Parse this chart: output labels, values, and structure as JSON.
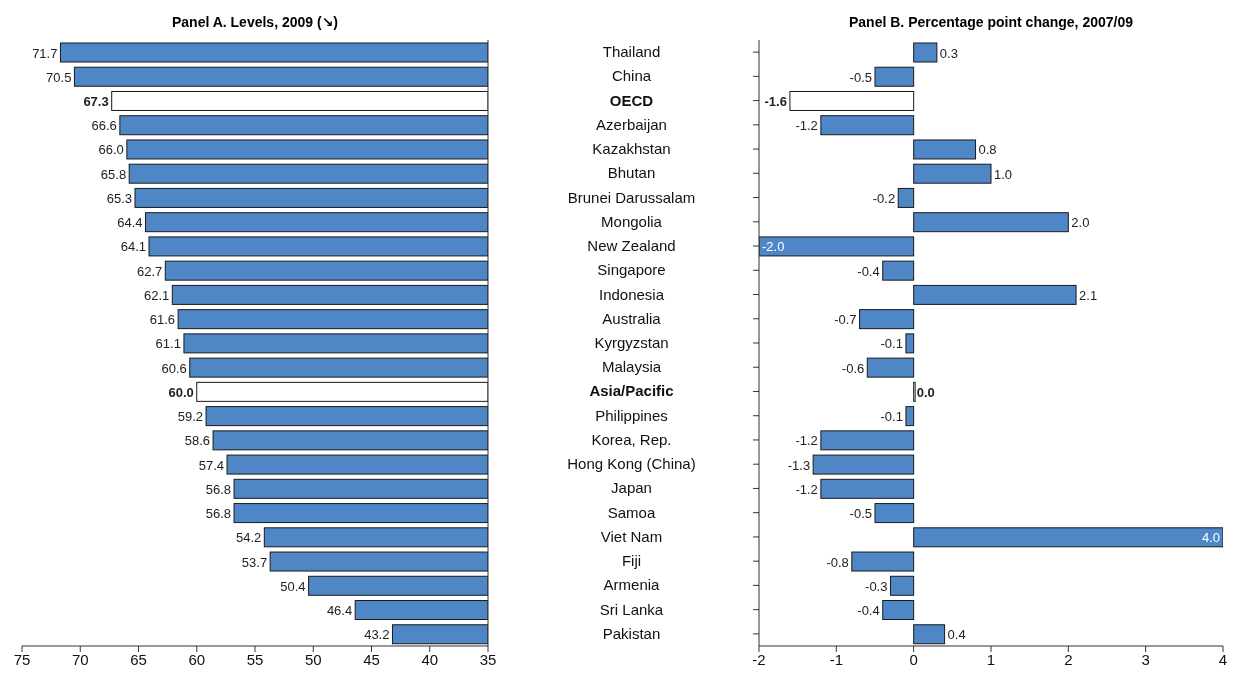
{
  "chart_data": [
    {
      "type": "bar",
      "orientation": "horizontal",
      "title": "Panel A. Levels, 2009 (↘)",
      "categories": [
        "Thailand",
        "China",
        "OECD",
        "Azerbaijan",
        "Kazakhstan",
        "Bhutan",
        "Brunei Darussalam",
        "Mongolia",
        "New Zealand",
        "Singapore",
        "Indonesia",
        "Australia",
        "Kyrgyzstan",
        "Malaysia",
        "Asia/Pacific",
        "Philippines",
        "Korea, Rep.",
        "Hong Kong (China)",
        "Japan",
        "Samoa",
        "Viet Nam",
        "Fiji",
        "Armenia",
        "Sri Lanka",
        "Pakistan"
      ],
      "values": [
        71.7,
        70.5,
        67.3,
        66.6,
        66.0,
        65.8,
        65.3,
        64.4,
        64.1,
        62.7,
        62.1,
        61.6,
        61.1,
        60.6,
        60.0,
        59.2,
        58.6,
        57.4,
        56.8,
        56.8,
        54.2,
        53.7,
        50.4,
        46.4,
        43.2
      ],
      "value_labels": [
        "71.7",
        "70.5",
        "67.3",
        "66.6",
        "66.0",
        "65.8",
        "65.3",
        "64.4",
        "64.1",
        "62.7",
        "62.1",
        "61.6",
        "61.1",
        "60.6",
        "60.0",
        "59.2",
        "58.6",
        "57.4",
        "56.8",
        "56.8",
        "54.2",
        "53.7",
        "50.4",
        "46.4",
        "43.2"
      ],
      "colors": [
        "#4f86c6",
        "#4f86c6",
        "#ffffff",
        "#4f86c6",
        "#4f86c6",
        "#4f86c6",
        "#4f86c6",
        "#4f86c6",
        "#4f86c6",
        "#4f86c6",
        "#4f86c6",
        "#4f86c6",
        "#4f86c6",
        "#4f86c6",
        "#ffffff",
        "#4f86c6",
        "#4f86c6",
        "#4f86c6",
        "#4f86c6",
        "#4f86c6",
        "#4f86c6",
        "#4f86c6",
        "#4f86c6",
        "#4f86c6",
        "#4f86c6"
      ],
      "xlim": [
        75,
        35
      ],
      "xticks": [
        75,
        70,
        65,
        60,
        55,
        50,
        45,
        40,
        35
      ],
      "tick_labels": "x",
      "grid": false,
      "legend": false
    },
    {
      "type": "bar",
      "orientation": "horizontal",
      "title": "Panel B. Percentage point change, 2007/09",
      "categories": [
        "Thailand",
        "China",
        "OECD",
        "Azerbaijan",
        "Kazakhstan",
        "Bhutan",
        "Brunei Darussalam",
        "Mongolia",
        "New Zealand",
        "Singapore",
        "Indonesia",
        "Australia",
        "Kyrgyzstan",
        "Malaysia",
        "Asia/Pacific",
        "Philippines",
        "Korea, Rep.",
        "Hong Kong (China)",
        "Japan",
        "Samoa",
        "Viet Nam",
        "Fiji",
        "Armenia",
        "Sri Lanka",
        "Pakistan"
      ],
      "values": [
        0.3,
        -0.5,
        -1.6,
        -1.2,
        0.8,
        1.0,
        -0.2,
        2.0,
        -2.0,
        -0.4,
        2.1,
        -0.7,
        -0.1,
        -0.6,
        0.0,
        -0.1,
        -1.2,
        -1.3,
        -1.2,
        -0.5,
        4.0,
        -0.8,
        -0.3,
        -0.4,
        0.4
      ],
      "value_labels": [
        "0.3",
        "-0.5",
        "-1.6",
        "-1.2",
        "0.8",
        "1.0",
        "-0.2",
        "2.0",
        "-2.0",
        "-0.4",
        "2.1",
        "-0.7",
        "-0.1",
        "-0.6",
        "0.0",
        "-0.1",
        "-1.2",
        "-1.3",
        "-1.2",
        "-0.5",
        "4.0",
        "-0.8",
        "-0.3",
        "-0.4",
        "0.4"
      ],
      "colors": [
        "#4f86c6",
        "#4f86c6",
        "#ffffff",
        "#4f86c6",
        "#4f86c6",
        "#4f86c6",
        "#4f86c6",
        "#4f86c6",
        "#4f86c6",
        "#4f86c6",
        "#4f86c6",
        "#4f86c6",
        "#4f86c6",
        "#4f86c6",
        "#ffffff",
        "#4f86c6",
        "#4f86c6",
        "#4f86c6",
        "#4f86c6",
        "#4f86c6",
        "#4f86c6",
        "#4f86c6",
        "#4f86c6",
        "#4f86c6",
        "#4f86c6"
      ],
      "xlim": [
        -2,
        4
      ],
      "xticks": [
        -2,
        -1,
        0,
        1,
        2,
        3,
        4
      ],
      "grid": false,
      "legend": false
    }
  ]
}
